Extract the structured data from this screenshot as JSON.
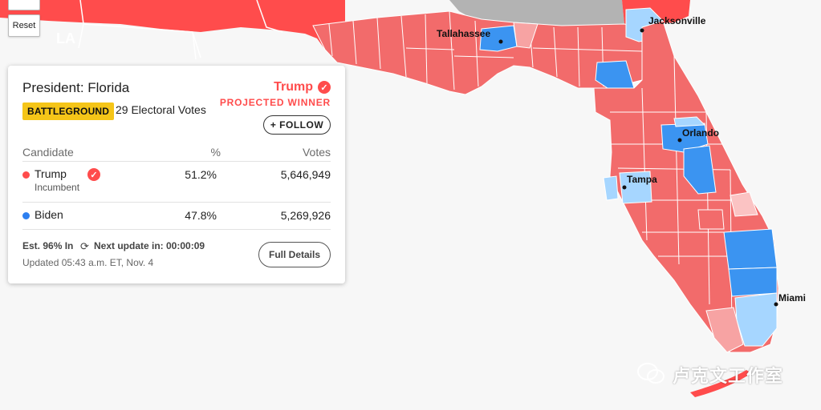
{
  "map": {
    "state_label": "LA",
    "colors": {
      "rep_solid": "#ff4c4c",
      "rep_lean": "#f26b6b",
      "rep_light": "#f7a3a3",
      "rep_pale": "#fbc3c3",
      "dem_solid": "#3b94f1",
      "dem_light": "#a6d6ff",
      "no_data": "#b3b3b3",
      "background": "#f7f7f7",
      "border": "#ffffff"
    },
    "cities": [
      {
        "name": "Jacksonville"
      },
      {
        "name": "Tallahassee"
      },
      {
        "name": "Orlando"
      },
      {
        "name": "Tampa"
      },
      {
        "name": "Miami"
      }
    ]
  },
  "controls": {
    "reset_label": "Reset"
  },
  "race": {
    "title": "President: Florida",
    "badge": "BATTLEGROUND",
    "electoral_votes": "29 Electoral Votes",
    "winner": "Trump",
    "winner_status": "PROJECTED WINNER",
    "follow_label": "+ FOLLOW",
    "table_headers": {
      "candidate": "Candidate",
      "pct": "%",
      "votes": "Votes"
    },
    "candidates": [
      {
        "name": "Trump",
        "sub": "Incumbent",
        "pct": "51.2%",
        "votes": "5,646,949",
        "color": "#ff4c4c",
        "winner": true
      },
      {
        "name": "Biden",
        "sub": "",
        "pct": "47.8%",
        "votes": "5,269,926",
        "color": "#2d7ff0",
        "winner": false
      }
    ],
    "est_in": "Est. 96% In",
    "next_update": "Next update in: 00:00:09",
    "updated": "Updated 05:43 a.m. ET, Nov. 4",
    "details_label": "Full Details"
  },
  "watermark": "卢克文工作室"
}
